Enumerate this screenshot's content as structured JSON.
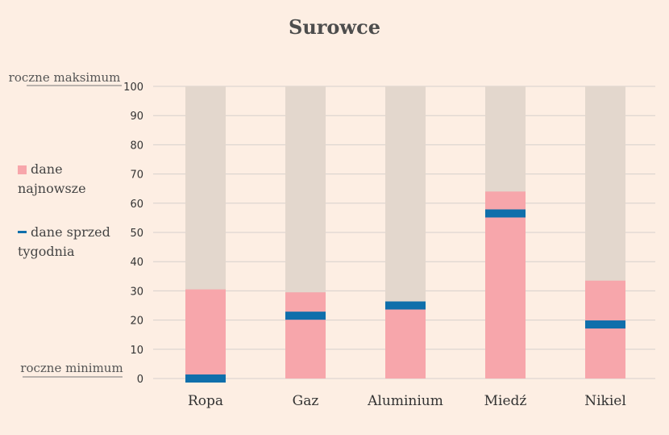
{
  "chart_data": {
    "type": "bar",
    "title": "Surowce",
    "categories": [
      "Ropa",
      "Gaz",
      "Aluminium",
      "Miedź",
      "Nikiel"
    ],
    "series": [
      {
        "name": "dane najnowsze",
        "values": [
          30.5,
          29.5,
          24,
          64,
          33.5
        ]
      },
      {
        "name": "dane sprzed tygodnia",
        "values": [
          0,
          21.5,
          25,
          56.5,
          18.5
        ]
      }
    ],
    "ylim": [
      0,
      100
    ],
    "yticks": [
      0,
      10,
      20,
      30,
      40,
      50,
      60,
      70,
      80,
      90,
      100
    ],
    "top_label": "roczne maksimum",
    "bottom_label": "roczne minimum",
    "grid": true,
    "legend": {
      "position": "left",
      "latest": [
        "dane",
        "najnowsze"
      ],
      "week_ago": [
        "dane sprzed",
        "tygodnia"
      ]
    },
    "colors": {
      "background": "#fdeee3",
      "range": "#e3d7cd",
      "latest": "#f7a6ab",
      "week_ago": "#0f6fab",
      "grid": "#d6d0cc"
    }
  }
}
